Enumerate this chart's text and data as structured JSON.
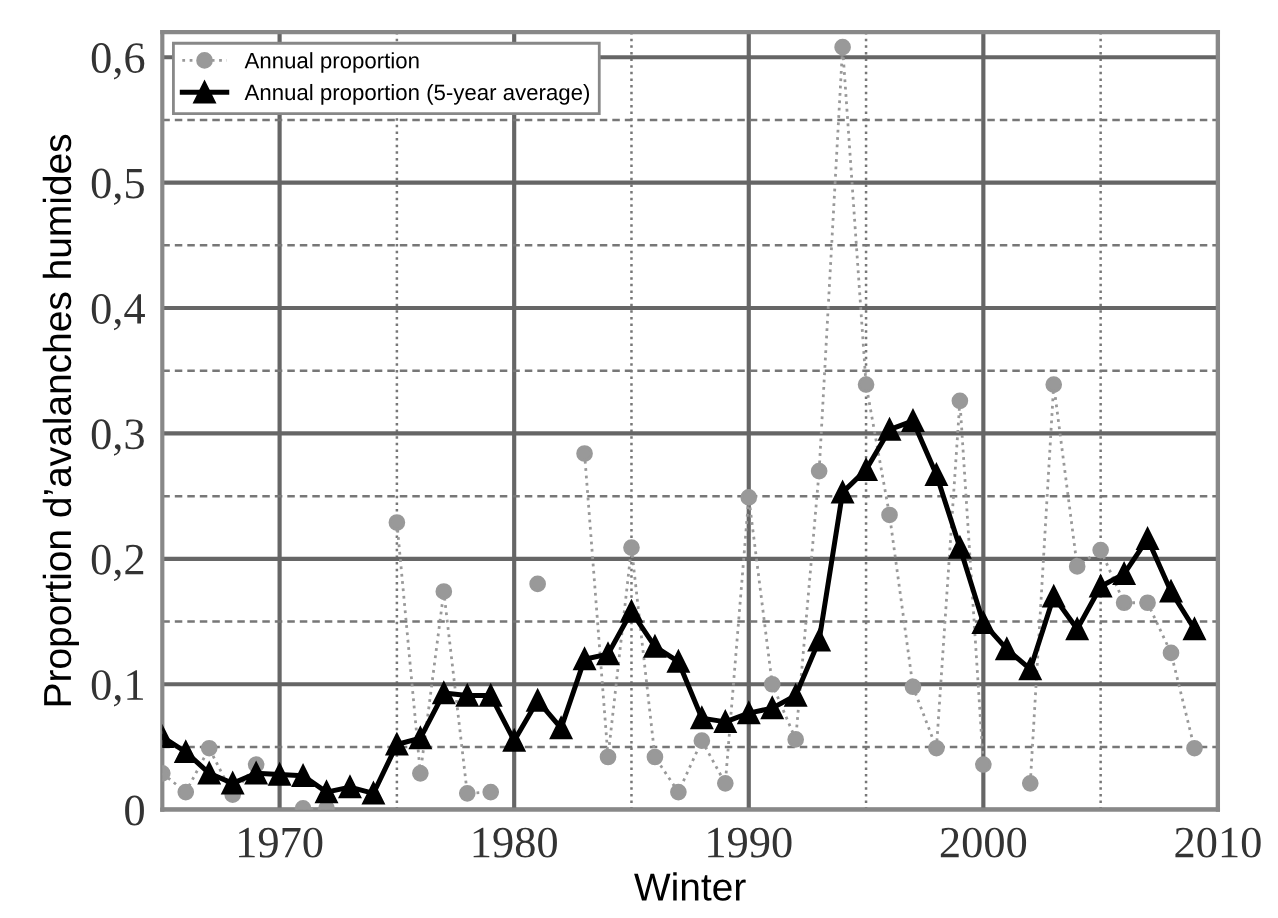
{
  "chart_data": {
    "type": "line",
    "xlabel": "Winter",
    "ylabel": "Proportion d’avalanches humides",
    "x": [
      1965,
      1966,
      1967,
      1968,
      1969,
      1970,
      1971,
      1972,
      1973,
      1974,
      1975,
      1976,
      1977,
      1978,
      1979,
      1980,
      1981,
      1982,
      1983,
      1984,
      1985,
      1986,
      1987,
      1988,
      1989,
      1990,
      1991,
      1992,
      1993,
      1994,
      1995,
      1996,
      1997,
      1998,
      1999,
      2000,
      2001,
      2002,
      2003,
      2004,
      2005,
      2006,
      2007,
      2008,
      2009
    ],
    "series": [
      {
        "name": "Annual proportion",
        "color": "#999999",
        "marker": "circle",
        "line_style": "dotted",
        "values": [
          0.029,
          0.014,
          0.049,
          0.012,
          0.036,
          null,
          0.001,
          0.001,
          null,
          null,
          0.229,
          0.029,
          0.174,
          0.013,
          0.014,
          null,
          0.18,
          null,
          0.284,
          0.042,
          0.209,
          0.042,
          0.014,
          0.055,
          0.021,
          0.249,
          0.1,
          0.056,
          0.27,
          0.608,
          0.339,
          0.235,
          0.098,
          0.049,
          0.326,
          0.036,
          null,
          0.021,
          0.339,
          0.194,
          0.207,
          0.165,
          0.165,
          0.125,
          0.049
        ]
      },
      {
        "name": "Annual proportion (5-year average)",
        "color": "#000000",
        "marker": "triangle",
        "line_style": "solid",
        "values": [
          0.058,
          0.046,
          0.029,
          0.021,
          0.029,
          0.028,
          0.027,
          0.014,
          0.018,
          0.013,
          0.052,
          0.057,
          0.093,
          0.091,
          0.091,
          0.055,
          0.087,
          0.065,
          0.12,
          0.124,
          0.158,
          0.13,
          0.118,
          0.073,
          0.07,
          0.077,
          0.081,
          0.091,
          0.135,
          0.253,
          0.271,
          0.303,
          0.31,
          0.267,
          0.209,
          0.149,
          0.128,
          0.112,
          0.17,
          0.144,
          0.178,
          0.188,
          0.216,
          0.174,
          0.144
        ]
      }
    ],
    "xlim": [
      1965,
      2010
    ],
    "ylim": [
      0,
      0.62
    ],
    "xticks": [
      1970,
      {
        "value": 1975,
        "label": null
      },
      1980,
      {
        "value": 1985,
        "label": null
      },
      1990,
      {
        "value": 1995,
        "label": null
      },
      2000,
      {
        "value": 2005,
        "label": null
      },
      2010
    ],
    "yticks": [
      0,
      {
        "value": 0.05,
        "label": null
      },
      {
        "value": 0.1,
        "label": "0,1"
      },
      {
        "value": 0.15,
        "label": null
      },
      {
        "value": 0.2,
        "label": "0,2"
      },
      {
        "value": 0.25,
        "label": null
      },
      {
        "value": 0.3,
        "label": "0,3"
      },
      {
        "value": 0.35,
        "label": null
      },
      {
        "value": 0.4,
        "label": "0,4"
      },
      {
        "value": 0.45,
        "label": null
      },
      {
        "value": 0.5,
        "label": "0,5"
      },
      {
        "value": 0.55,
        "label": null
      },
      {
        "value": 0.6,
        "label": "0,6"
      }
    ],
    "grid": true,
    "legend": "top left"
  }
}
